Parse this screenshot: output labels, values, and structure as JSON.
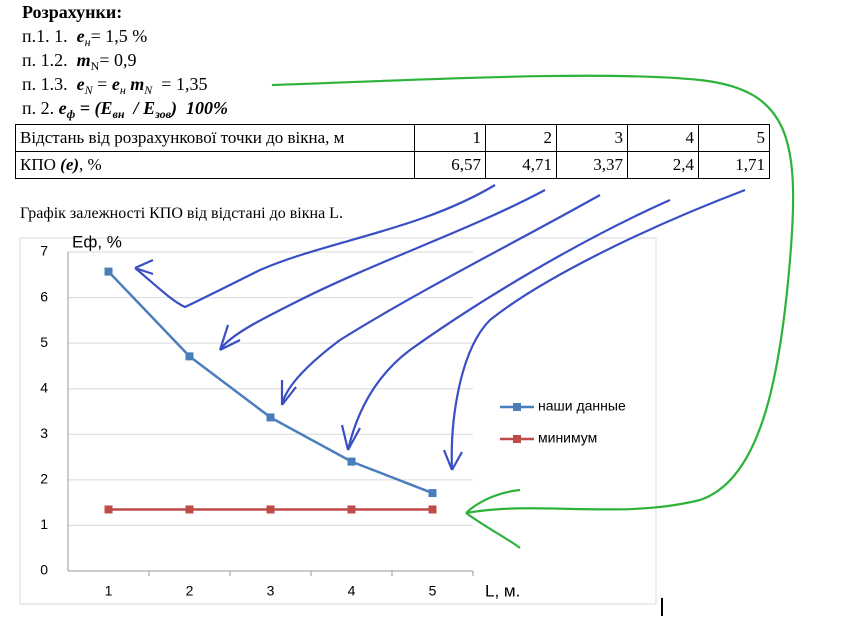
{
  "calc_title": "Розрахунки:",
  "calculations": [
    [
      "п.1. 1.  ",
      "е",
      "н",
      "= 1,5 %"
    ],
    [
      "п. 1.2.  ",
      "m",
      "N",
      "= 0,9"
    ],
    [
      "п. 1.3.  ",
      "e",
      "N",
      " = ",
      "e",
      "н",
      " ",
      "m",
      "N",
      "  = 1,35"
    ],
    [
      "п. 2. ",
      "е",
      "ф",
      " = (",
      "Е",
      "вн",
      "  / ",
      "Е",
      "зов",
      ")  100%"
    ]
  ],
  "table": {
    "header": [
      "Відстань від розрахункової точки до вікна, м",
      "1",
      "2",
      "3",
      "4",
      "5"
    ],
    "row_label": [
      "КПО ",
      "(е)",
      ", %"
    ],
    "row_values": [
      "6,57",
      "4,71",
      "3,37",
      "2,4",
      "1,71"
    ]
  },
  "caption": "Графік залежності КПО від відстані до вікна L.",
  "chart_data": {
    "type": "line",
    "y_label": "Еф, %",
    "x_label": "L, м.",
    "categories": [
      "1",
      "2",
      "3",
      "4",
      "5"
    ],
    "series": [
      {
        "name": "наши данные",
        "color": "#4a7ebb",
        "values": [
          6.57,
          4.71,
          3.37,
          2.4,
          1.71
        ]
      },
      {
        "name": "минимум",
        "color": "#be4b48",
        "values": [
          1.35,
          1.35,
          1.35,
          1.35,
          1.35
        ]
      }
    ],
    "ylim": [
      0,
      7
    ],
    "yticks": [
      0,
      1,
      2,
      3,
      4,
      5,
      6,
      7
    ],
    "grid": true
  }
}
